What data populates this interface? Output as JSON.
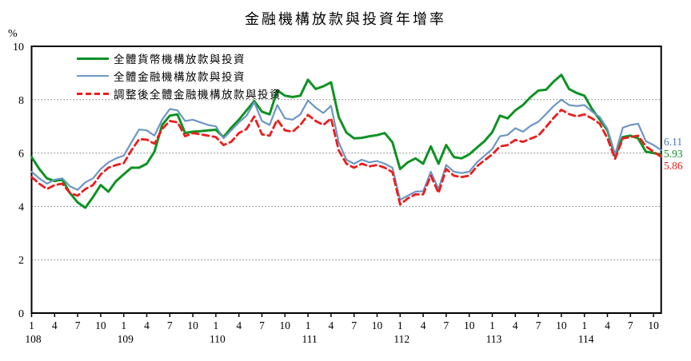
{
  "chart_data": {
    "type": "line",
    "title": "金融機構放款與投資年增率",
    "ylabel": "%",
    "ylim": [
      0,
      10
    ],
    "yticks": [
      0,
      2,
      4,
      6,
      8,
      10
    ],
    "grid_values": [
      2,
      4,
      6,
      8
    ],
    "x_start": {
      "year": 108,
      "month": 1
    },
    "x_end": {
      "year": 114,
      "month": 11
    },
    "x_labeled_months": [
      1,
      4,
      7,
      10
    ],
    "legend_position": "top-left-inside",
    "grid": "horizontal-dotted",
    "series": [
      {
        "name": "全體貨幣機構放款與投資",
        "color": "#0e9223",
        "style": "solid",
        "width": 3,
        "values": [
          5.85,
          5.4,
          5.05,
          4.95,
          5.0,
          4.5,
          4.15,
          3.95,
          4.35,
          4.8,
          4.55,
          4.95,
          5.2,
          5.45,
          5.45,
          5.6,
          6.05,
          7.05,
          7.4,
          7.45,
          6.75,
          6.8,
          6.82,
          6.85,
          6.87,
          6.6,
          6.95,
          7.25,
          7.6,
          7.95,
          7.55,
          7.45,
          8.35,
          8.15,
          8.1,
          8.15,
          8.75,
          8.4,
          8.5,
          8.65,
          7.35,
          6.77,
          6.55,
          6.57,
          6.63,
          6.67,
          6.75,
          6.4,
          5.4,
          5.65,
          5.8,
          5.6,
          6.25,
          5.6,
          6.3,
          5.85,
          5.8,
          5.95,
          6.2,
          6.45,
          6.78,
          7.4,
          7.3,
          7.6,
          7.8,
          8.1,
          8.34,
          8.37,
          8.68,
          8.93,
          8.4,
          8.25,
          8.15,
          7.65,
          7.25,
          6.85,
          5.88,
          6.6,
          6.65,
          6.55,
          6.05,
          6.0,
          5.93
        ]
      },
      {
        "name": "全體金融機構放款與投資",
        "color": "#6d96c4",
        "style": "solid",
        "width": 2.2,
        "values": [
          5.3,
          5.05,
          4.85,
          5.0,
          5.05,
          4.75,
          4.62,
          4.9,
          5.05,
          5.4,
          5.65,
          5.8,
          5.9,
          6.4,
          6.88,
          6.85,
          6.65,
          7.25,
          7.65,
          7.6,
          7.2,
          7.25,
          7.15,
          7.05,
          7.0,
          6.55,
          6.85,
          7.15,
          7.4,
          7.9,
          7.2,
          7.05,
          7.8,
          7.3,
          7.25,
          7.45,
          7.97,
          7.7,
          7.5,
          7.77,
          6.4,
          5.75,
          5.6,
          5.75,
          5.65,
          5.7,
          5.6,
          5.45,
          4.25,
          4.4,
          4.55,
          4.57,
          5.3,
          4.65,
          5.55,
          5.3,
          5.25,
          5.3,
          5.65,
          5.9,
          6.15,
          6.63,
          6.68,
          6.93,
          6.8,
          7.02,
          7.17,
          7.46,
          7.76,
          8.0,
          7.8,
          7.76,
          7.8,
          7.55,
          7.35,
          6.9,
          5.95,
          6.95,
          7.05,
          7.1,
          6.45,
          6.3,
          6.11
        ]
      },
      {
        "name": "調整後全體金融機構放款與投資",
        "color": "#ee1c1c",
        "style": "dashed",
        "width": 2.8,
        "values": [
          5.1,
          4.85,
          4.65,
          4.8,
          4.85,
          4.5,
          4.4,
          4.65,
          4.8,
          5.2,
          5.45,
          5.55,
          5.62,
          6.1,
          6.52,
          6.5,
          6.35,
          6.9,
          7.2,
          7.15,
          6.63,
          6.75,
          6.7,
          6.65,
          6.6,
          6.3,
          6.42,
          6.75,
          6.9,
          7.37,
          6.7,
          6.65,
          7.25,
          6.85,
          6.8,
          7.05,
          7.43,
          7.2,
          7.05,
          7.3,
          6.1,
          5.6,
          5.45,
          5.6,
          5.5,
          5.55,
          5.45,
          5.28,
          4.07,
          4.3,
          4.45,
          4.45,
          5.15,
          4.5,
          5.4,
          5.15,
          5.1,
          5.15,
          5.5,
          5.73,
          5.95,
          6.25,
          6.3,
          6.49,
          6.42,
          6.54,
          6.65,
          6.98,
          7.32,
          7.62,
          7.46,
          7.37,
          7.45,
          7.3,
          7.1,
          6.55,
          5.78,
          6.55,
          6.6,
          6.65,
          6.25,
          6.05,
          5.86
        ]
      }
    ],
    "end_labels": [
      {
        "text": "6.11",
        "color": "#4a76ad"
      },
      {
        "text": "5.93",
        "color": "#0e9223"
      },
      {
        "text": "5.86",
        "color": "#ee1c1c"
      }
    ]
  }
}
